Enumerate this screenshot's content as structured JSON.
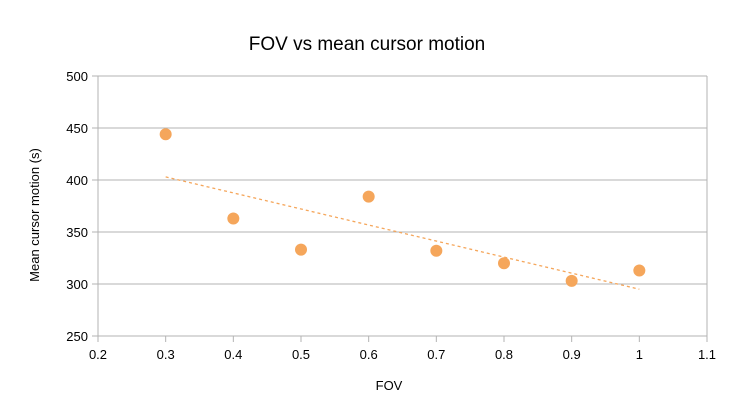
{
  "chart_data": {
    "type": "scatter",
    "title": "FOV vs mean cursor motion",
    "xlabel": "FOV",
    "ylabel": "Mean cursor motion (s)",
    "xlim": [
      0.2,
      1.1
    ],
    "ylim": [
      250,
      500
    ],
    "x_ticks": [
      "0.2",
      "0.3",
      "0.4",
      "0.5",
      "0.6",
      "0.7",
      "0.8",
      "0.9",
      "1",
      "1.1"
    ],
    "y_ticks": [
      "250",
      "300",
      "350",
      "400",
      "450",
      "500"
    ],
    "grid": "horizontal",
    "legend": "none",
    "series": [
      {
        "color": "#f5a65b",
        "points": [
          {
            "x": 0.3,
            "y": 444
          },
          {
            "x": 0.4,
            "y": 363
          },
          {
            "x": 0.5,
            "y": 333
          },
          {
            "x": 0.6,
            "y": 384
          },
          {
            "x": 0.7,
            "y": 332
          },
          {
            "x": 0.8,
            "y": 320
          },
          {
            "x": 0.9,
            "y": 303
          },
          {
            "x": 1.0,
            "y": 313
          }
        ]
      }
    ],
    "trendline": {
      "type": "linear",
      "style": "dashed",
      "color": "#f5a65b",
      "from": {
        "x": 0.3,
        "y": 403
      },
      "to": {
        "x": 1.0,
        "y": 295
      }
    }
  }
}
